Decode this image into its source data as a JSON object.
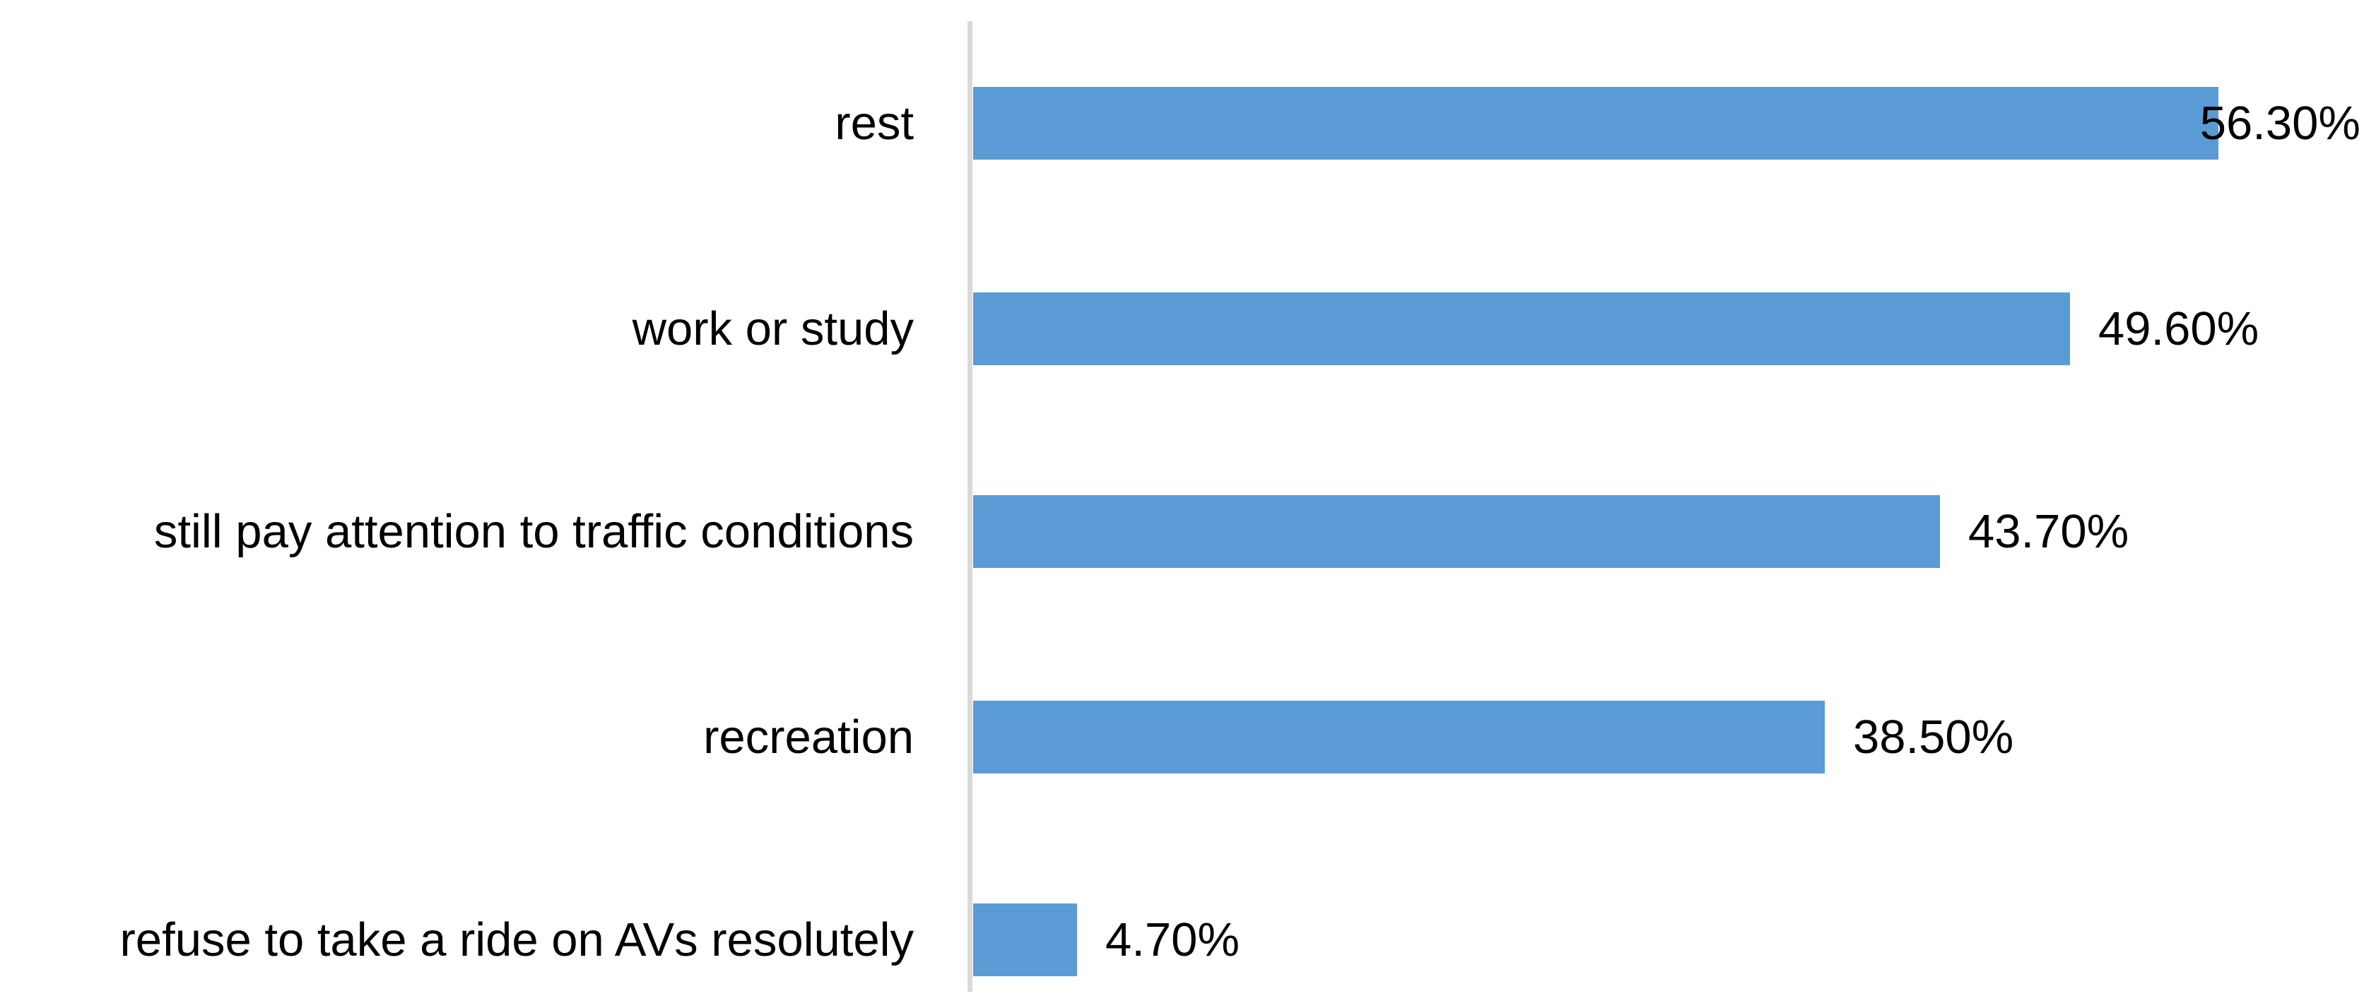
{
  "chart_data": {
    "type": "bar",
    "orientation": "horizontal",
    "title": "",
    "xlabel": "",
    "ylabel": "",
    "categories": [
      "rest",
      "work or study",
      "still pay attention to traffic conditions",
      "recreation",
      "refuse to take a ride on AVs resolutely"
    ],
    "values": [
      56.3,
      49.6,
      43.7,
      38.5,
      4.7
    ],
    "data_labels": [
      "56.30%",
      "49.60%",
      "43.70%",
      "38.50%",
      "4.70%"
    ],
    "xlim": [
      0,
      60
    ],
    "grid": false,
    "legend": false,
    "bar_color": "#5B9BD5",
    "axis_line_color": "#D9D9D9",
    "text_color": "#000000",
    "background_color": "#FFFFFF"
  }
}
